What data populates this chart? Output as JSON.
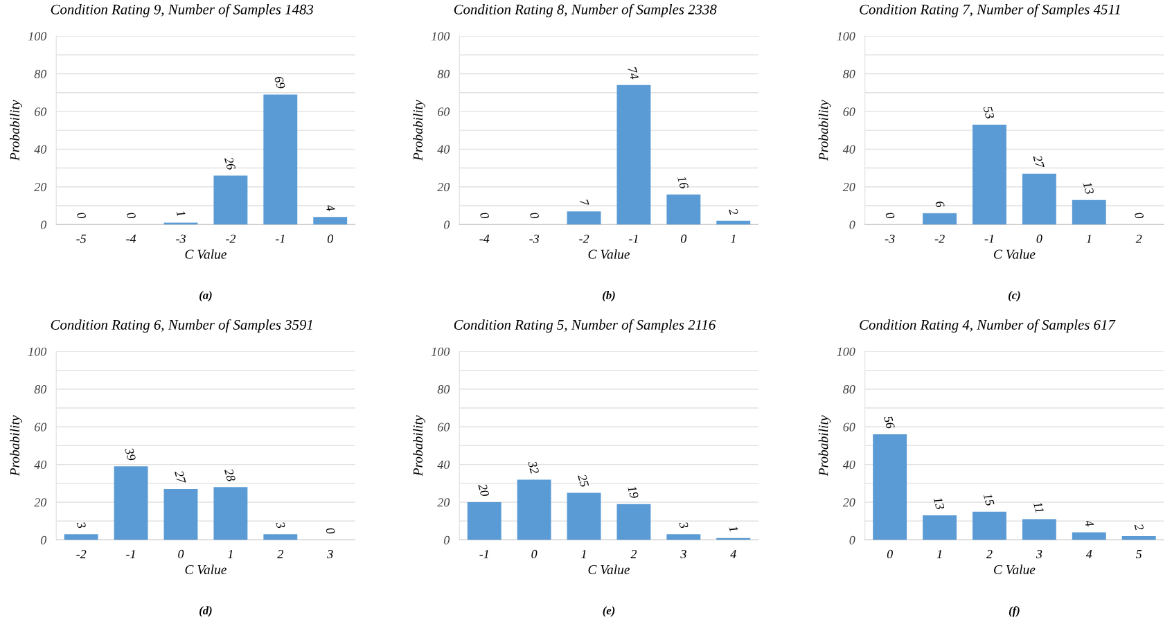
{
  "chart_data": [
    {
      "type": "bar",
      "title": "Condition Rating 9, Number of Samples 1483",
      "categories": [
        "-5",
        "-4",
        "-3",
        "-2",
        "-1",
        "0"
      ],
      "values": [
        0,
        0,
        1,
        26,
        69,
        4
      ],
      "color": "#5b9bd5",
      "xlabel": "C Value",
      "ylabel": "Probability",
      "ylim": [
        0,
        100
      ],
      "yticks": [
        0,
        {
          "value": 10,
          "label": null
        },
        20,
        {
          "value": 30,
          "label": null
        },
        40,
        {
          "value": 50,
          "label": null
        },
        60,
        {
          "value": 70,
          "label": null
        },
        80,
        {
          "value": 90,
          "label": null
        },
        100
      ],
      "grid": "y",
      "data_labels": true,
      "annotations": [
        "(a)"
      ]
    },
    {
      "type": "bar",
      "title": "Condition Rating 8, Number of Samples 2338",
      "categories": [
        "-4",
        "-3",
        "-2",
        "-1",
        "0",
        "1"
      ],
      "values": [
        0,
        0,
        7,
        74,
        16,
        2
      ],
      "color": "#5b9bd5",
      "xlabel": "C Value",
      "ylabel": "Probability",
      "ylim": [
        0,
        100
      ],
      "yticks": [
        0,
        {
          "value": 10,
          "label": null
        },
        20,
        {
          "value": 30,
          "label": null
        },
        40,
        {
          "value": 50,
          "label": null
        },
        60,
        {
          "value": 70,
          "label": null
        },
        80,
        {
          "value": 90,
          "label": null
        },
        100
      ],
      "grid": "y",
      "data_labels": true,
      "annotations": [
        "(b)"
      ]
    },
    {
      "type": "bar",
      "title": "Condition Rating 7, Number of Samples 4511",
      "categories": [
        "-3",
        "-2",
        "-1",
        "0",
        "1",
        "2"
      ],
      "values": [
        0,
        6,
        53,
        27,
        13,
        0
      ],
      "color": "#5b9bd5",
      "xlabel": "C Value",
      "ylabel": "Probability",
      "ylim": [
        0,
        100
      ],
      "yticks": [
        0,
        {
          "value": 10,
          "label": null
        },
        20,
        {
          "value": 30,
          "label": null
        },
        40,
        {
          "value": 50,
          "label": null
        },
        60,
        {
          "value": 70,
          "label": null
        },
        80,
        {
          "value": 90,
          "label": null
        },
        100
      ],
      "grid": "y",
      "data_labels": true,
      "annotations": [
        "(c)"
      ]
    },
    {
      "type": "bar",
      "title": "Condition Rating 6, Number of Samples 3591",
      "categories": [
        "-2",
        "-1",
        "0",
        "1",
        "2",
        "3"
      ],
      "values": [
        3,
        39,
        27,
        28,
        3,
        0
      ],
      "color": "#5b9bd5",
      "xlabel": "C Value",
      "ylabel": "Probability",
      "ylim": [
        0,
        100
      ],
      "yticks": [
        0,
        {
          "value": 10,
          "label": null
        },
        20,
        {
          "value": 30,
          "label": null
        },
        40,
        {
          "value": 50,
          "label": null
        },
        60,
        {
          "value": 70,
          "label": null
        },
        80,
        {
          "value": 90,
          "label": null
        },
        100
      ],
      "grid": "y",
      "data_labels": true,
      "annotations": [
        "(d)"
      ]
    },
    {
      "type": "bar",
      "title": "Condition Rating 5, Number of Samples 2116",
      "categories": [
        "-1",
        "0",
        "1",
        "2",
        "3",
        "4"
      ],
      "values": [
        20,
        32,
        25,
        19,
        3,
        1
      ],
      "color": "#5b9bd5",
      "xlabel": "C Value",
      "ylabel": "Probability",
      "ylim": [
        0,
        100
      ],
      "yticks": [
        0,
        {
          "value": 10,
          "label": null
        },
        20,
        {
          "value": 30,
          "label": null
        },
        40,
        {
          "value": 50,
          "label": null
        },
        60,
        {
          "value": 70,
          "label": null
        },
        80,
        {
          "value": 90,
          "label": null
        },
        100
      ],
      "grid": "y",
      "data_labels": true,
      "annotations": [
        "(e)"
      ]
    },
    {
      "type": "bar",
      "title": "Condition Rating 4, Number of Samples 617",
      "categories": [
        "0",
        "1",
        "2",
        "3",
        "4",
        "5"
      ],
      "values": [
        56,
        13,
        15,
        11,
        4,
        2
      ],
      "color": "#5b9bd5",
      "xlabel": "C Value",
      "ylabel": "Probability",
      "ylim": [
        0,
        100
      ],
      "yticks": [
        0,
        {
          "value": 10,
          "label": null
        },
        20,
        {
          "value": 30,
          "label": null
        },
        40,
        {
          "value": 50,
          "label": null
        },
        60,
        {
          "value": 70,
          "label": null
        },
        80,
        {
          "value": 90,
          "label": null
        },
        100
      ],
      "grid": "y",
      "data_labels": true,
      "annotations": [
        "(f)"
      ]
    }
  ]
}
